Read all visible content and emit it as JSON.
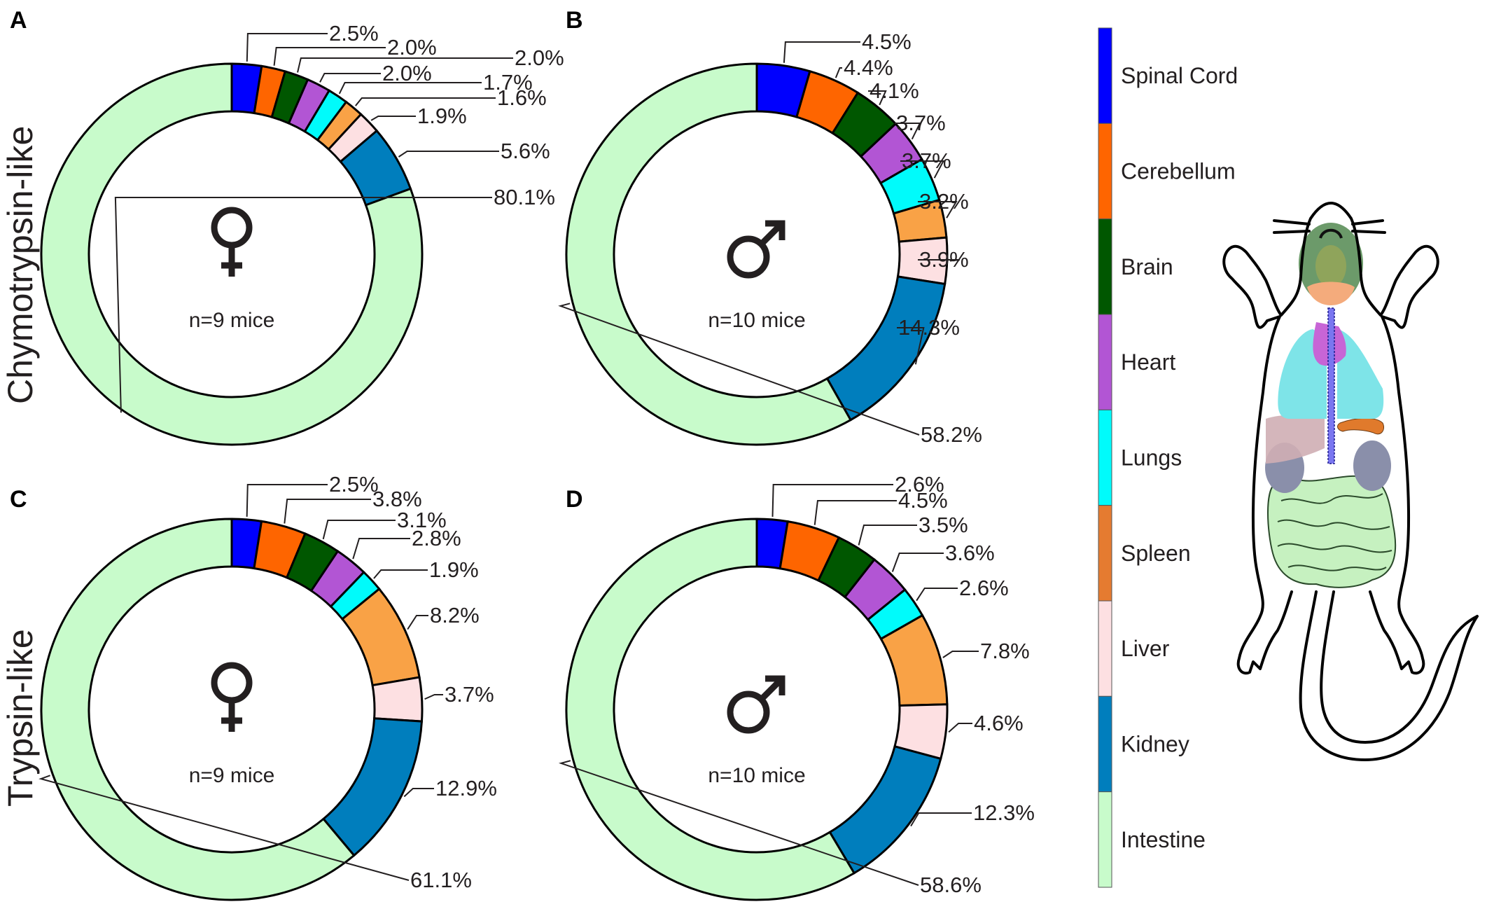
{
  "figure": {
    "row_labels": [
      "Chymotrypsin-like",
      "Trypsin-like"
    ]
  },
  "legend": {
    "items": [
      {
        "label": "Spinal Cord",
        "color": "#0000fe"
      },
      {
        "label": "Cerebellum",
        "color": "#fe6500"
      },
      {
        "label": "Brain",
        "color": "#005700"
      },
      {
        "label": "Heart",
        "color": "#b255d4"
      },
      {
        "label": "Lungs",
        "color": "#00fbfb"
      },
      {
        "label": "Spleen",
        "color": "#e57b30"
      },
      {
        "label": "Liver",
        "color": "#fde0e2"
      },
      {
        "label": "Kidney",
        "color": "#007ebd"
      },
      {
        "label": "Intestine",
        "color": "#c8fbcb"
      }
    ]
  },
  "chart_data": [
    {
      "type": "pie",
      "panel": "A",
      "row": "Chymotrypsin-like",
      "sex": "female",
      "sex_symbol": "♀",
      "n_label": "n=9 mice",
      "categories": [
        "Spinal Cord",
        "Cerebellum",
        "Brain",
        "Heart",
        "Lungs",
        "Spleen",
        "Liver",
        "Kidney",
        "Intestine"
      ],
      "values": [
        2.5,
        2.0,
        2.0,
        2.0,
        1.7,
        1.6,
        1.9,
        5.6,
        80.1
      ],
      "labels": [
        "2.5%",
        "2.0%",
        "2.0%",
        "2.0%",
        "1.7%",
        "1.6%",
        "1.9%",
        "5.6%",
        "80.1%"
      ],
      "colors": [
        "#0000fe",
        "#fe6500",
        "#005700",
        "#b255d4",
        "#00fbfb",
        "#f9a246",
        "#fde0e2",
        "#007ebd",
        "#c8fbcb"
      ],
      "donut": true,
      "start": "12 o'clock, clockwise"
    },
    {
      "type": "pie",
      "panel": "B",
      "row": "Chymotrypsin-like",
      "sex": "male",
      "sex_symbol": "♂",
      "n_label": "n=10 mice",
      "categories": [
        "Spinal Cord",
        "Cerebellum",
        "Brain",
        "Heart",
        "Lungs",
        "Spleen",
        "Liver",
        "Kidney",
        "Intestine"
      ],
      "values": [
        4.5,
        4.4,
        4.1,
        3.7,
        3.7,
        3.2,
        3.9,
        14.3,
        58.2
      ],
      "labels": [
        "4.5%",
        "4.4%",
        "4.1%",
        "3.7%",
        "3.7%",
        "3.2%",
        "3.9%",
        "14.3%",
        "58.2%"
      ],
      "colors": [
        "#0000fe",
        "#fe6500",
        "#005700",
        "#b255d4",
        "#00fbfb",
        "#f9a246",
        "#fde0e2",
        "#007ebd",
        "#c8fbcb"
      ],
      "donut": true,
      "start": "12 o'clock, clockwise"
    },
    {
      "type": "pie",
      "panel": "C",
      "row": "Trypsin-like",
      "sex": "female",
      "sex_symbol": "♀",
      "n_label": "n=9 mice",
      "categories": [
        "Spinal Cord",
        "Cerebellum",
        "Brain",
        "Heart",
        "Lungs",
        "Spleen",
        "Liver",
        "Kidney",
        "Intestine"
      ],
      "values": [
        2.5,
        3.8,
        3.1,
        2.8,
        1.9,
        8.2,
        3.7,
        12.9,
        61.1
      ],
      "labels": [
        "2.5%",
        "3.8%",
        "3.1%",
        "2.8%",
        "1.9%",
        "8.2%",
        "3.7%",
        "12.9%",
        "61.1%"
      ],
      "colors": [
        "#0000fe",
        "#fe6500",
        "#005700",
        "#b255d4",
        "#00fbfb",
        "#f9a246",
        "#fde0e2",
        "#007ebd",
        "#c8fbcb"
      ],
      "donut": true,
      "start": "12 o'clock, clockwise"
    },
    {
      "type": "pie",
      "panel": "D",
      "row": "Trypsin-like",
      "sex": "male",
      "sex_symbol": "♂",
      "n_label": "n=10 mice",
      "categories": [
        "Spinal Cord",
        "Cerebellum",
        "Brain",
        "Heart",
        "Lungs",
        "Spleen",
        "Liver",
        "Kidney",
        "Intestine"
      ],
      "values": [
        2.6,
        4.5,
        3.5,
        3.6,
        2.6,
        7.8,
        4.6,
        12.3,
        58.6
      ],
      "labels": [
        "2.6%",
        "4.5%",
        "3.5%",
        "3.6%",
        "2.6%",
        "7.8%",
        "4.6%",
        "12.3%",
        "58.6%"
      ],
      "colors": [
        "#0000fe",
        "#fe6500",
        "#005700",
        "#b255d4",
        "#00fbfb",
        "#f9a246",
        "#fde0e2",
        "#007ebd",
        "#c8fbcb"
      ],
      "donut": true,
      "start": "12 o'clock, clockwise"
    }
  ],
  "illustration": {
    "subject": "mouse anatomy diagram (dorsal view) with organs colored: brain, cerebellum, spinal cord, heart, lungs, liver, spleen, kidneys, intestine"
  }
}
